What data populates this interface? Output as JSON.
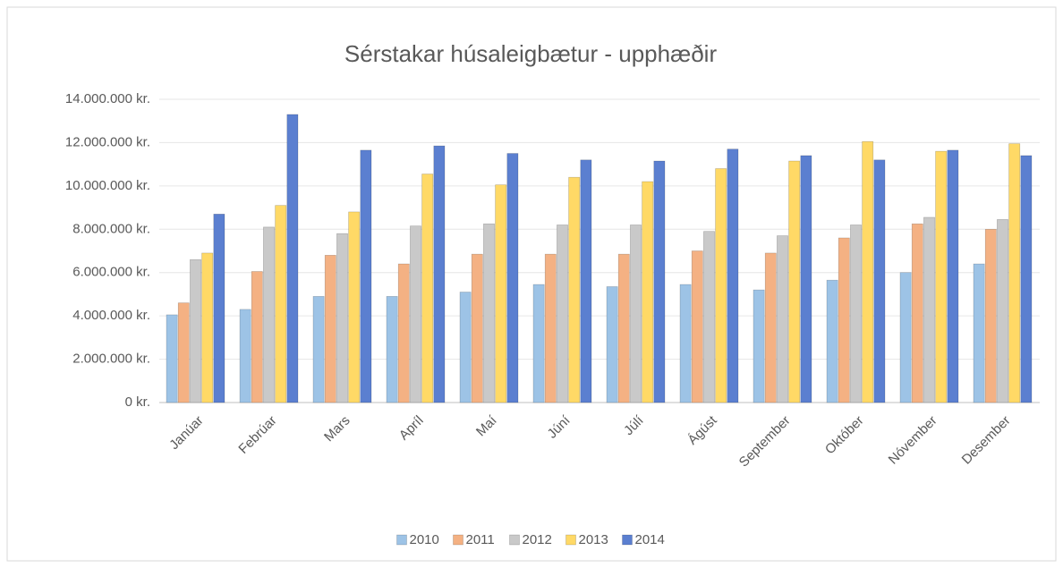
{
  "chart_data": {
    "type": "bar",
    "title": "Sérstakar húsaleigbætur - upphæðir",
    "categories": [
      "Janúar",
      "Febrúar",
      "Mars",
      "Apríl",
      "Maí",
      "Júní",
      "Júlí",
      "Ágúst",
      "September",
      "Október",
      "Nóvember",
      "Desember"
    ],
    "series": [
      {
        "name": "2010",
        "color": "#9dc3e6",
        "values": [
          4050000,
          4300000,
          4900000,
          4900000,
          5100000,
          5450000,
          5350000,
          5450000,
          5200000,
          5650000,
          6000000,
          6400000
        ]
      },
      {
        "name": "2011",
        "color": "#f4b183",
        "values": [
          4600000,
          6050000,
          6800000,
          6400000,
          6850000,
          6850000,
          6850000,
          7000000,
          6900000,
          7600000,
          8250000,
          8000000
        ]
      },
      {
        "name": "2012",
        "color": "#c9c9c9",
        "values": [
          6600000,
          8100000,
          7800000,
          8150000,
          8250000,
          8200000,
          8200000,
          7900000,
          7700000,
          8200000,
          8550000,
          8450000
        ]
      },
      {
        "name": "2013",
        "color": "#ffd966",
        "values": [
          6900000,
          9100000,
          8800000,
          10550000,
          10050000,
          10400000,
          10200000,
          10800000,
          11150000,
          12050000,
          11600000,
          11950000
        ]
      },
      {
        "name": "2014",
        "color": "#5b7fd0",
        "values": [
          8700000,
          13300000,
          11650000,
          11850000,
          11500000,
          11200000,
          11150000,
          11700000,
          11400000,
          11200000,
          11650000,
          11400000
        ]
      }
    ],
    "ylim": [
      0,
      14000000
    ],
    "yticks": [
      {
        "value": 0,
        "label": "0 kr."
      },
      {
        "value": 2000000,
        "label": "2.000.000 kr."
      },
      {
        "value": 4000000,
        "label": "4.000.000 kr."
      },
      {
        "value": 6000000,
        "label": "6.000.000 kr."
      },
      {
        "value": 8000000,
        "label": "8.000.000 kr."
      },
      {
        "value": 10000000,
        "label": "10.000.000 kr."
      },
      {
        "value": 12000000,
        "label": "12.000.000 kr."
      },
      {
        "value": 14000000,
        "label": "14.000.000 kr."
      }
    ],
    "grid": true,
    "legend": "bottom"
  }
}
